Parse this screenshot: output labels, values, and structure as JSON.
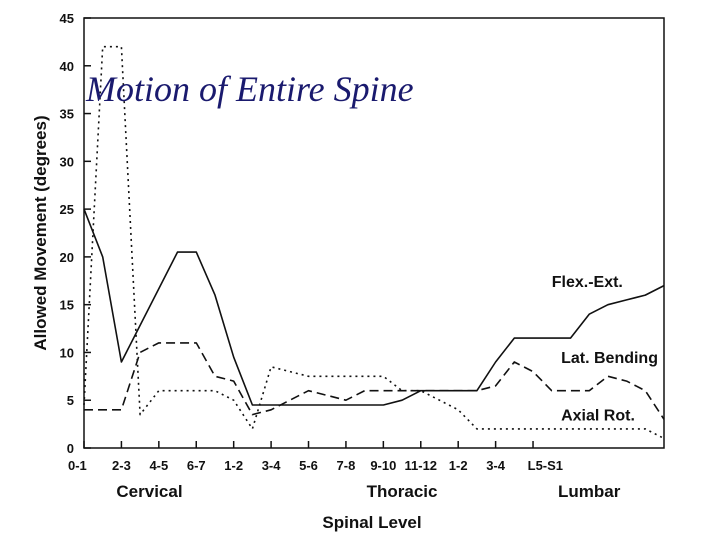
{
  "chart_data": {
    "type": "line",
    "title": "Motion of Entire Spine",
    "xlabel": "Spinal Level",
    "ylabel": "Allowed Movement (degrees)",
    "ylim": [
      0,
      45
    ],
    "yticks": [
      "0",
      "5",
      "10",
      "15",
      "20",
      "25",
      "30",
      "35",
      "40",
      "45"
    ],
    "categories": [
      "0-1",
      "2-3",
      "4-5",
      "6-7",
      "1-2",
      "3-4",
      "5-6",
      "7-8",
      "9-10",
      "11-12",
      "1-2",
      "3-4",
      "L5-S1"
    ],
    "groups": [
      {
        "label": "Cervical",
        "center": 3.5
      },
      {
        "label": "Thoracic",
        "center": 17
      },
      {
        "label": "Lumbar",
        "center": 27
      }
    ],
    "x_range": [
      0,
      31
    ],
    "grid": false,
    "legend": "labels beside lines",
    "series": [
      {
        "name": "Flex.-Ext.",
        "style": "solid",
        "label_at": [
          25,
          17.5
        ],
        "x": [
          0,
          1,
          2,
          5,
          6,
          7,
          8,
          9,
          10,
          11,
          12,
          13,
          14,
          15,
          16,
          17,
          18,
          19,
          20,
          21,
          22,
          23,
          24,
          25,
          26,
          27,
          28,
          29,
          30,
          31
        ],
        "y": [
          25,
          20,
          9,
          20.5,
          20.5,
          16,
          9.5,
          4.5,
          4.5,
          4.5,
          4.5,
          4.5,
          4.5,
          4.5,
          4.5,
          5,
          6,
          6,
          6,
          6,
          9,
          11.5,
          11.5,
          11.5,
          11.5,
          14,
          15,
          15.5,
          16,
          17
        ]
      },
      {
        "name": "Lat. Bending",
        "style": "dashed",
        "label_at": [
          25.5,
          9.5
        ],
        "x": [
          0,
          1,
          2,
          3,
          4,
          5,
          6,
          7,
          8,
          9,
          10,
          11,
          12,
          13,
          14,
          15,
          16,
          17,
          18,
          19,
          20,
          21,
          22,
          23,
          24,
          25,
          26,
          27,
          28,
          29,
          30,
          31
        ],
        "y": [
          4,
          4,
          4,
          10,
          11,
          11,
          11,
          7.5,
          7,
          3.5,
          4,
          5,
          6,
          5.5,
          5,
          6,
          6,
          6,
          6,
          6,
          6,
          6,
          6.5,
          9,
          8,
          6,
          6,
          6,
          7.5,
          7,
          6,
          3
        ]
      },
      {
        "name": "Axial Rot.",
        "style": "dotted",
        "label_at": [
          25.5,
          3.5
        ],
        "x": [
          0,
          1,
          2,
          3,
          4,
          5,
          6,
          7,
          8,
          9,
          10,
          11,
          12,
          13,
          14,
          15,
          16,
          17,
          18,
          19,
          20,
          21,
          22,
          23,
          24,
          25,
          26,
          27,
          28,
          29,
          30,
          31
        ],
        "y": [
          4.5,
          42,
          42,
          3.5,
          6,
          6,
          6,
          6,
          5,
          2,
          8.5,
          8,
          7.5,
          7.5,
          7.5,
          7.5,
          7.5,
          6,
          6,
          5,
          4,
          2,
          2,
          2,
          2,
          2,
          2,
          2,
          2,
          2,
          2,
          1
        ]
      }
    ]
  }
}
